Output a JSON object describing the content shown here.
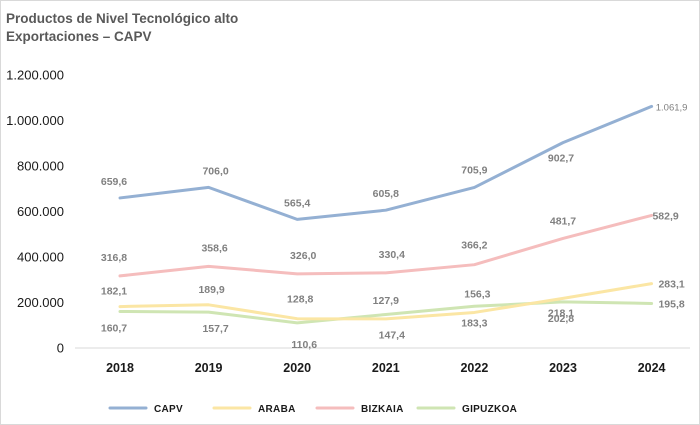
{
  "chart_data": {
    "type": "line",
    "title": "Productos de Nivel Tecnológico alto",
    "subtitle": "Exportaciones – CAPV",
    "categories": [
      "2018",
      "2019",
      "2020",
      "2021",
      "2022",
      "2023",
      "2024"
    ],
    "ylim": [
      0,
      1200000
    ],
    "yticks": [
      0,
      200000,
      400000,
      600000,
      800000,
      1000000,
      1200000
    ],
    "ytick_labels": [
      "0",
      "200.000",
      "400.000",
      "600.000",
      "800.000",
      "1.000.000",
      "1.200.000"
    ],
    "grid": false,
    "legend_position": "bottom",
    "series": [
      {
        "name": "CAPV",
        "color": "#94b0d3",
        "values": [
          659600,
          706000,
          565400,
          605800,
          705900,
          902700,
          1061900
        ],
        "labels": [
          "659,6",
          "706,0",
          "565,4",
          "605,8",
          "705,9",
          "902,7",
          "1.061,9"
        ]
      },
      {
        "name": "ARABA",
        "color": "#fbe6a4",
        "values": [
          182100,
          189900,
          128800,
          127900,
          156300,
          218100,
          283100
        ],
        "labels": [
          "182,1",
          "189,9",
          "128,8",
          "127,9",
          "156,3",
          "218,1",
          "283,1"
        ]
      },
      {
        "name": "BIZKAIA",
        "color": "#f5bdbd",
        "values": [
          316800,
          358600,
          326000,
          330400,
          366200,
          481700,
          582900
        ],
        "labels": [
          "316,8",
          "358,6",
          "326,0",
          "330,4",
          "366,2",
          "481,7",
          "582,9"
        ]
      },
      {
        "name": "GIPUZKOA",
        "color": "#cfe5b3",
        "values": [
          160700,
          157700,
          110600,
          147400,
          183300,
          202800,
          195800
        ],
        "labels": [
          "160,7",
          "157,7",
          "110,6",
          "147,4",
          "183,3",
          "202,8",
          "195,8"
        ]
      }
    ]
  }
}
